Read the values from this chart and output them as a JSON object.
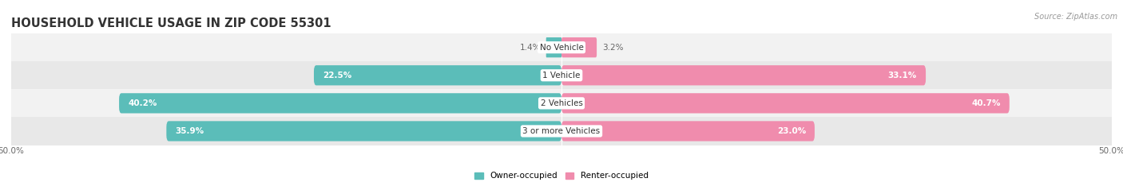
{
  "title": "HOUSEHOLD VEHICLE USAGE IN ZIP CODE 55301",
  "source": "Source: ZipAtlas.com",
  "categories": [
    "No Vehicle",
    "1 Vehicle",
    "2 Vehicles",
    "3 or more Vehicles"
  ],
  "owner_values": [
    1.4,
    22.5,
    40.2,
    35.9
  ],
  "renter_values": [
    3.2,
    33.1,
    40.7,
    23.0
  ],
  "owner_color": "#5bbdb9",
  "renter_color": "#f08cad",
  "row_bg_even": "#f2f2f2",
  "row_bg_odd": "#e8e8e8",
  "axis_limit": 50.0,
  "legend_owner": "Owner-occupied",
  "legend_renter": "Renter-occupied",
  "title_fontsize": 10.5,
  "label_fontsize": 7.5,
  "bar_height": 0.72,
  "figsize": [
    14.06,
    2.34
  ],
  "dpi": 100
}
